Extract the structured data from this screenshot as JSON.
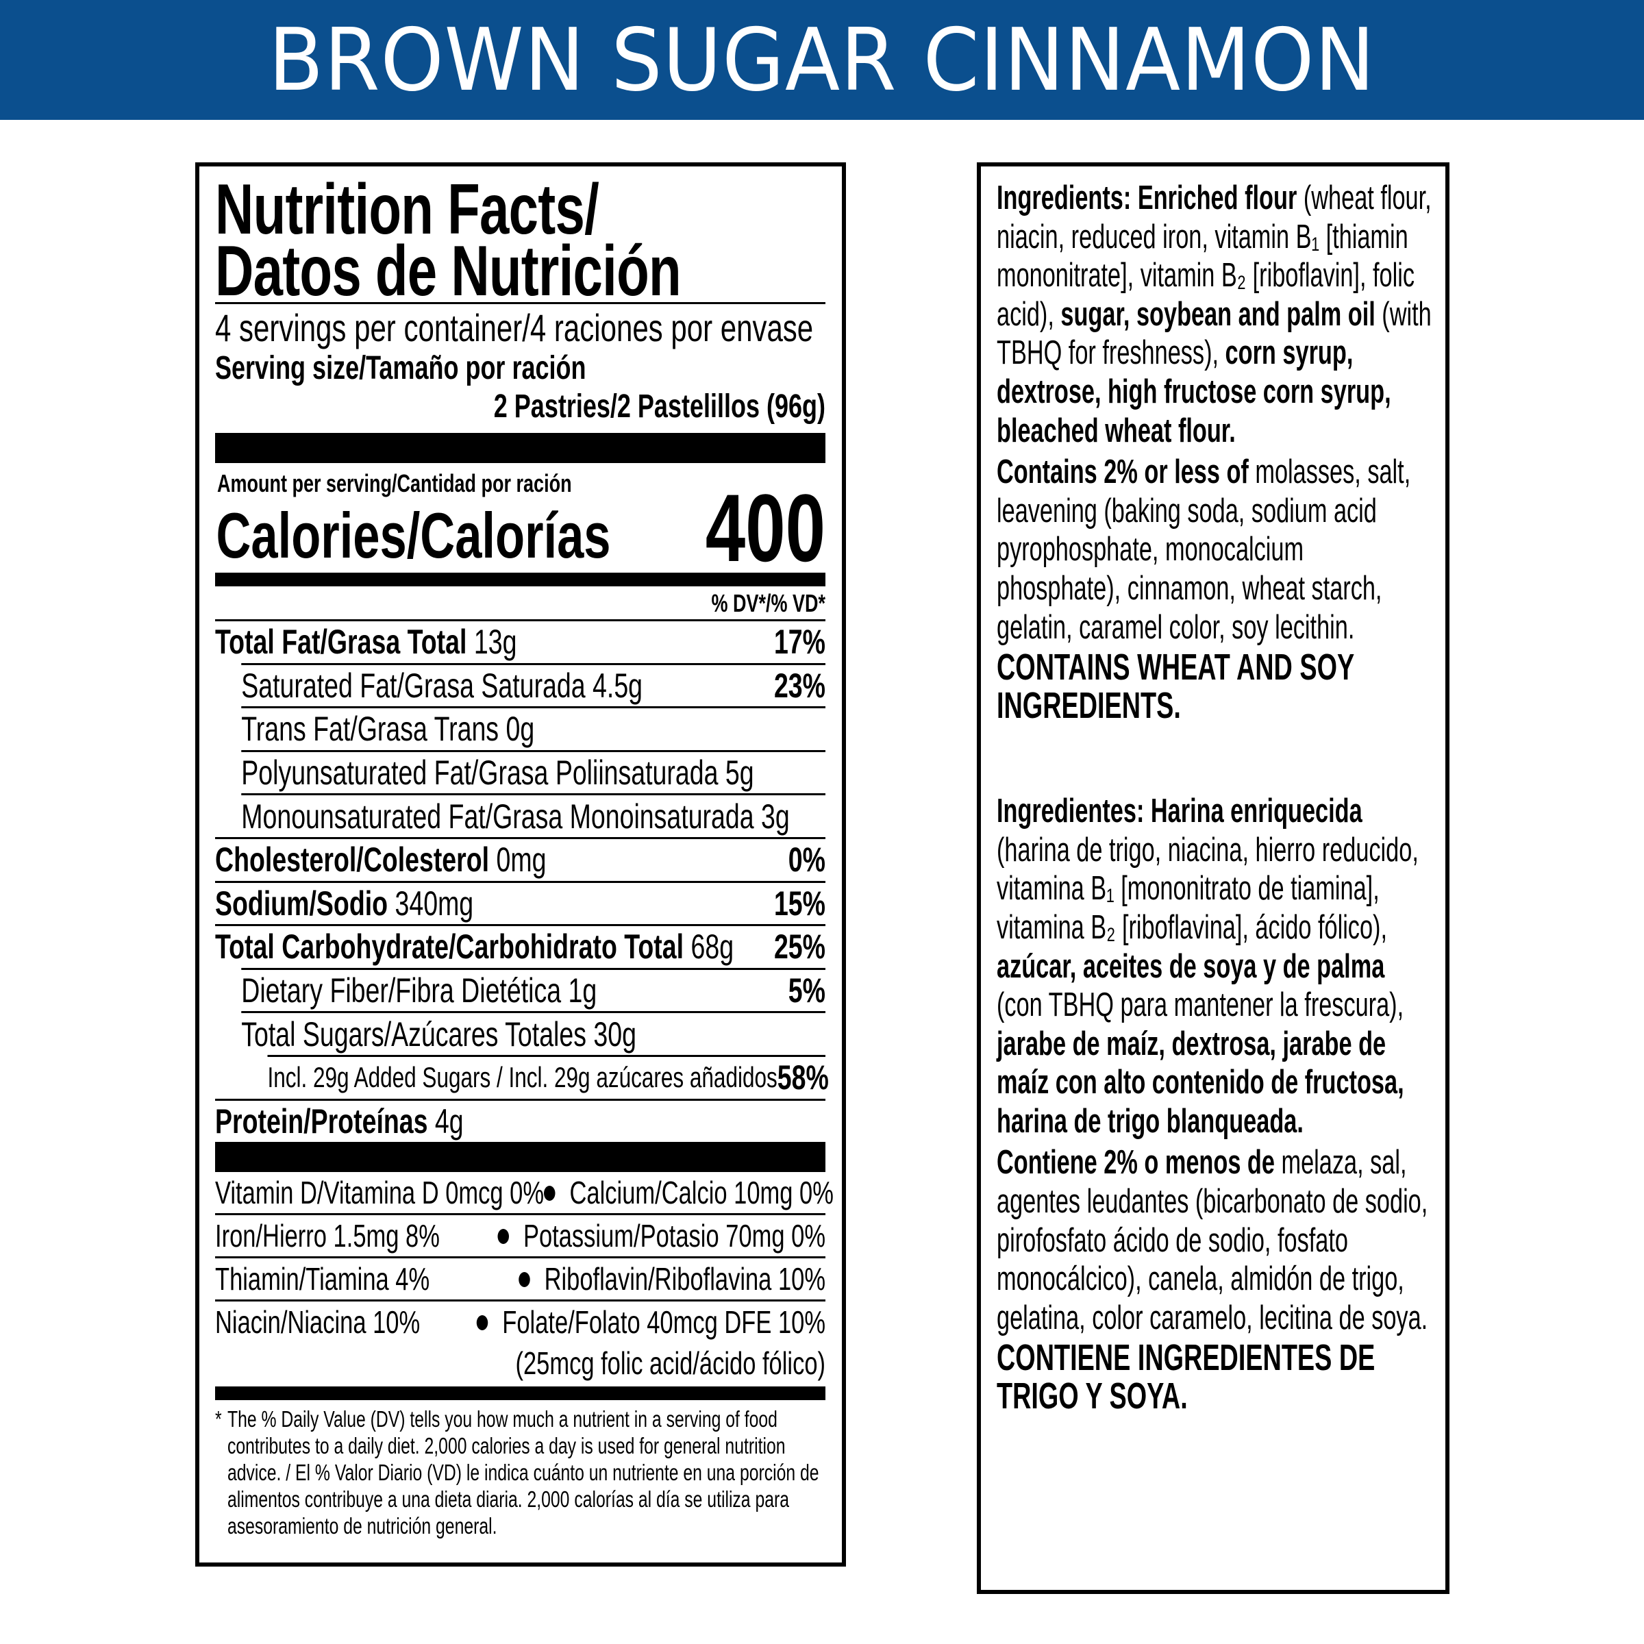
{
  "banner": {
    "title": "BROWN SUGAR CINNAMON",
    "color": "#0b4f8e"
  },
  "nutrition": {
    "title_line1": "Nutrition Facts/",
    "title_line2": "Datos de Nutrición",
    "servings": "4 servings per container/4 raciones por envase",
    "serving_size_label": "Serving size/Tamaño por ración",
    "serving_size_value": "2 Pastries/2 Pastelillos (96g)",
    "amount_per_serving": "Amount per serving/Cantidad por ración",
    "calories_label": "Calories/Calorías",
    "calories_value": "400",
    "dv_header": "% DV*/% VD*",
    "rows": [
      {
        "label": "Total Fat/Grasa Total",
        "amount": "13g",
        "dv": "17%",
        "level": 0
      },
      {
        "label": "Saturated Fat/Grasa Saturada",
        "amount": "4.5g",
        "dv": "23%",
        "level": 1
      },
      {
        "label": "Trans Fat/Grasa Trans",
        "amount": "0g",
        "dv": "",
        "level": 1
      },
      {
        "label": "Polyunsaturated Fat/Grasa Poliinsaturada",
        "amount": "5g",
        "dv": "",
        "level": 1
      },
      {
        "label": "Monounsaturated Fat/Grasa Monoinsaturada",
        "amount": "3g",
        "dv": "",
        "level": 1
      },
      {
        "label": "Cholesterol/Colesterol",
        "amount": "0mg",
        "dv": "0%",
        "level": 0
      },
      {
        "label": "Sodium/Sodio",
        "amount": "340mg",
        "dv": "15%",
        "level": 0
      },
      {
        "label": "Total Carbohydrate/Carbohidrato Total",
        "amount": "68g",
        "dv": "25%",
        "level": 0
      },
      {
        "label": "Dietary Fiber/Fibra Dietética",
        "amount": "1g",
        "dv": "5%",
        "level": 1
      },
      {
        "label": "Total Sugars/Azúcares Totales",
        "amount": "30g",
        "dv": "",
        "level": 1
      },
      {
        "label": "Incl. 29g Added Sugars / Incl. 29g azúcares añadidos",
        "amount": "",
        "dv": "58%",
        "level": 2
      },
      {
        "label": "Protein/Proteínas",
        "amount": "4g",
        "dv": "",
        "level": 0
      }
    ],
    "vitamins": [
      {
        "left": "Vitamin D/Vitamina D 0mcg 0%",
        "right": "Calcium/Calcio 10mg 0%",
        "right_note": ""
      },
      {
        "left": "Iron/Hierro 1.5mg 8%",
        "right": "Potassium/Potasio 70mg 0%",
        "right_note": ""
      },
      {
        "left": "Thiamin/Tiamina 4%",
        "right": "Riboflavin/Riboflavina 10%",
        "right_note": ""
      },
      {
        "left": "Niacin/Niacina 10%",
        "right": "Folate/Folato 40mcg DFE 10%",
        "right_note": "(25mcg folic acid/ácido fólico)"
      }
    ],
    "footnote_star": "*",
    "footnote": "The % Daily Value (DV) tells you how much a nutrient in a serving of food contributes to a daily diet. 2,000 calories a day is used for general nutrition advice. / El % Valor Diario (VD) le indica cuánto un nutriente en una porción de alimentos contribuye a una dieta diaria. 2,000 calorías al día se utiliza para asesoramiento de nutrición general."
  },
  "ingredients": {
    "paragraphs": [
      {
        "style": "normal",
        "segments": [
          {
            "text": "Ingredients: Enriched flour ",
            "bold": true
          },
          {
            "text": "(wheat flour, niacin, reduced iron, vitamin B₁ [thiamin mononitrate], vitamin B₂ [riboflavin], folic acid), ",
            "bold": false
          },
          {
            "text": "sugar, soybean and palm oil ",
            "bold": true
          },
          {
            "text": "(with TBHQ for freshness), ",
            "bold": false
          },
          {
            "text": "corn syrup, dextrose, high fructose corn syrup, bleached wheat flour.",
            "bold": true
          }
        ]
      },
      {
        "style": "normal",
        "segments": [
          {
            "text": "Contains 2% or less of ",
            "bold": true
          },
          {
            "text": "molasses, salt, leavening (baking soda, sodium acid pyrophosphate, monocalcium phosphate), cinnamon, wheat starch, gelatin, caramel color, soy lecithin.",
            "bold": false
          }
        ]
      },
      {
        "style": "caps",
        "segments": [
          {
            "text": "CONTAINS WHEAT AND SOY INGREDIENTS.",
            "bold": true
          }
        ]
      },
      {
        "style": "normal",
        "segments": [
          {
            "text": "Ingredientes: Harina enriquecida ",
            "bold": true
          },
          {
            "text": "(harina de trigo, niacina, hierro reducido, vitamina B₁ [mononitrato de tiamina], vitamina B₂ [riboflavina], ácido fólico), ",
            "bold": false
          },
          {
            "text": "azúcar, aceites de soya y de palma ",
            "bold": true
          },
          {
            "text": "(con TBHQ para mantener la frescura), ",
            "bold": false
          },
          {
            "text": "jarabe de maíz, dextrosa, jarabe de maíz con alto contenido de fructosa, harina de trigo blanqueada.",
            "bold": true
          }
        ]
      },
      {
        "style": "normal",
        "segments": [
          {
            "text": "Contiene 2% o menos de ",
            "bold": true
          },
          {
            "text": "melaza, sal, agentes leudantes (bicarbonato de sodio, pirofosfato ácido de sodio, fosfato monocálcico), canela, almidón de trigo, gelatina, color caramelo, lecitina de soya.",
            "bold": false
          }
        ]
      },
      {
        "style": "caps",
        "segments": [
          {
            "text": "CONTIENE INGREDIENTES DE TRIGO Y SOYA.",
            "bold": true
          }
        ]
      }
    ]
  }
}
